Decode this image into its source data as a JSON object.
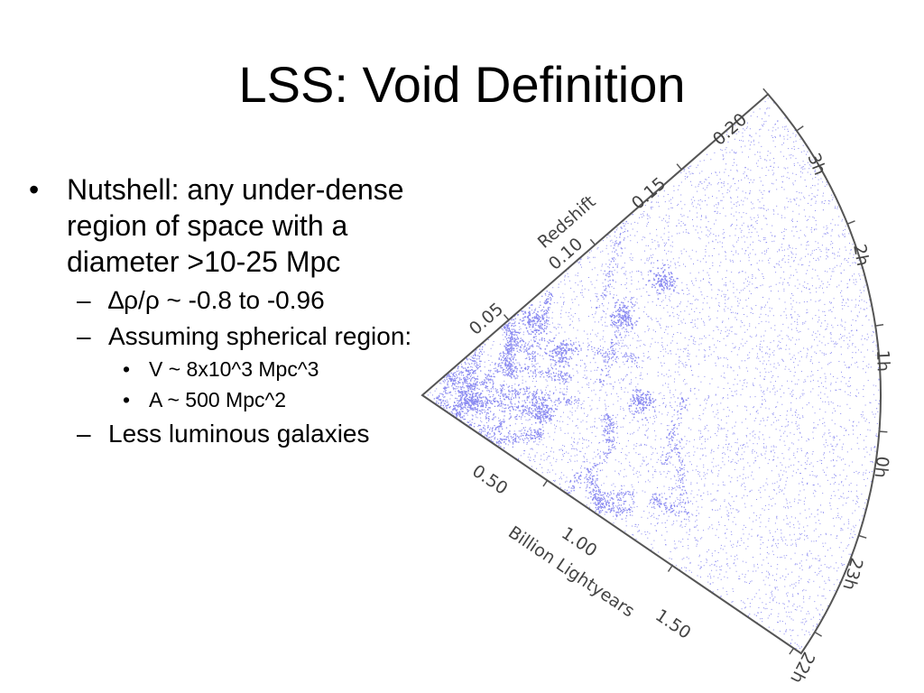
{
  "slide": {
    "title": "LSS: Void Definition"
  },
  "bullets": {
    "b1": {
      "marker": "•",
      "text": "Nutshell: any under-dense region of space with a diameter >10-25 Mpc"
    },
    "s1": {
      "marker": "–",
      "text": "∆ρ/ρ ~ -0.8 to -0.96"
    },
    "s2": {
      "marker": "–",
      "text": "Assuming spherical region:"
    },
    "t1": {
      "marker": "•",
      "text": "V ~ 8x10^3 Mpc^3"
    },
    "t2": {
      "marker": "•",
      "text": "A ~ 500 Mpc^2"
    },
    "s3": {
      "marker": "–",
      "text": "Less luminous galaxies"
    }
  },
  "figure": {
    "point_color": "#2a2ae6",
    "frame_color": "#555555",
    "redshift_axis": {
      "label": "Redshift",
      "ticks": [
        "0.05",
        "0.10",
        "0.15",
        "0.20"
      ]
    },
    "distance_axis": {
      "label": "Billion Lightyears",
      "ticks": [
        "0.50",
        "1.00",
        "1.50"
      ]
    },
    "ra_ticks": [
      "3h",
      "2h",
      "1h",
      "0h",
      "23h",
      "22h"
    ]
  }
}
